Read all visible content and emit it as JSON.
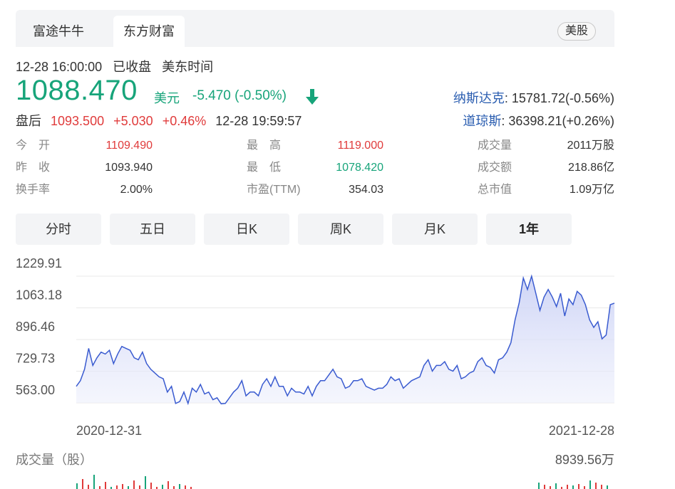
{
  "tabs": [
    {
      "label": "富途牛牛"
    },
    {
      "label": "东方财富"
    }
  ],
  "market_badge": "美股",
  "quote": {
    "datetime": "12-28 16:00:00",
    "status": "已收盘",
    "timezone": "美东时间",
    "price": "1088.470",
    "currency": "美元",
    "change": "-5.470 (-0.50%)",
    "after_label": "盘后",
    "after_price": "1093.500",
    "after_change": "+5.030",
    "after_pct": "+0.46%",
    "after_time": "12-28 19:59:57"
  },
  "indices": [
    {
      "name": "纳斯达克",
      "value": ": 15781.72(-0.56%)"
    },
    {
      "name": "道琼斯",
      "value": ": 36398.21(+0.26%)"
    }
  ],
  "stats": [
    {
      "label": "今　开",
      "value": "1109.490",
      "color": "#e03b3b"
    },
    {
      "label": "昨　收",
      "value": "1093.940",
      "color": "#333333"
    },
    {
      "label": "换手率",
      "value": "2.00%",
      "color": "#333333"
    },
    {
      "label": "最　高",
      "value": "1119.000",
      "color": "#e03b3b"
    },
    {
      "label": "最　低",
      "value": "1078.420",
      "color": "#17a47a"
    },
    {
      "label": "市盈(TTM)",
      "value": "354.03",
      "color": "#333333"
    },
    {
      "label": "成交量",
      "value": "2011万股",
      "color": "#333333"
    },
    {
      "label": "成交额",
      "value": "218.86亿",
      "color": "#333333"
    },
    {
      "label": "总市值",
      "value": "1.09万亿",
      "color": "#333333"
    }
  ],
  "period_tabs": [
    {
      "label": "分时"
    },
    {
      "label": "五日"
    },
    {
      "label": "日K"
    },
    {
      "label": "周K"
    },
    {
      "label": "月K"
    },
    {
      "label": "1年"
    }
  ],
  "chart_data": {
    "type": "area",
    "y_ticks": [
      "1229.91",
      "1063.18",
      "896.46",
      "729.73",
      "563.00"
    ],
    "ylim": [
      563.0,
      1229.91
    ],
    "x_labels": [
      "2020-12-31",
      "2021-12-28"
    ],
    "values": [
      650,
      680,
      740,
      850,
      760,
      800,
      830,
      820,
      840,
      770,
      820,
      860,
      850,
      840,
      800,
      790,
      830,
      770,
      740,
      720,
      700,
      690,
      620,
      650,
      560,
      570,
      620,
      560,
      640,
      620,
      660,
      610,
      620,
      580,
      590,
      510,
      560,
      590,
      620,
      640,
      680,
      600,
      620,
      620,
      600,
      660,
      690,
      650,
      700,
      650,
      650,
      600,
      640,
      620,
      620,
      610,
      650,
      600,
      650,
      680,
      680,
      710,
      740,
      700,
      690,
      640,
      650,
      680,
      680,
      690,
      650,
      640,
      630,
      640,
      640,
      660,
      700,
      680,
      690,
      640,
      660,
      680,
      690,
      700,
      760,
      790,
      730,
      760,
      760,
      780,
      740,
      730,
      760,
      690,
      700,
      720,
      730,
      780,
      800,
      760,
      750,
      720,
      790,
      800,
      830,
      880,
      1000,
      1090,
      1220,
      1160,
      1230,
      1140,
      1050,
      1120,
      1160,
      1120,
      1070,
      1140,
      1020,
      1110,
      1080,
      1150,
      1130,
      1080,
      1000,
      960,
      990,
      900,
      920,
      1080,
      1088
    ],
    "volume_title": "成交量（股）",
    "volume_max": "8939.56万"
  },
  "colors": {
    "up": "#e03b3b",
    "down": "#17a47a",
    "line": "#3a5bd0",
    "fill": "#e6e9fb"
  }
}
